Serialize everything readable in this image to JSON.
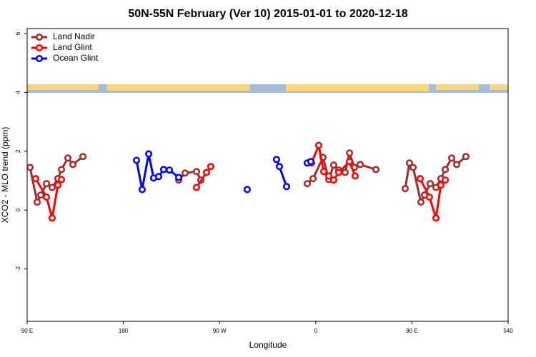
{
  "chart_data": {
    "type": "line",
    "title": "50N-55N February (Ver 10)   2015-01-01 to 2020-12-18",
    "x_label": "Longitude",
    "y_label": "XCO2 - MLO trend (ppm)",
    "xlim": [
      90,
      540
    ],
    "ylim": [
      -3.78,
      6.17
    ],
    "xticks": [
      {
        "value": 90,
        "label": "90 E"
      },
      180,
      {
        "value": 270,
        "label": "90 W"
      },
      {
        "value": 360,
        "label": "0"
      },
      {
        "value": 450,
        "label": "90 E"
      },
      540
    ],
    "yticks": [
      -2,
      0,
      2,
      4,
      6
    ],
    "legend": "top-left",
    "series": [
      {
        "name": "Land Nadir",
        "color": "#a52a2a",
        "x": [
          92.7,
          99.4,
          102.7,
          108.1,
          113.4,
          118.8,
          122.1,
          128.1,
          132.8,
          142.2,
          null,
          231.8,
          237.8,
          248.5,
          252.5,
          null,
          352.1,
          357.5,
          366.8,
          372.2,
          376.8,
          381.5,
          387.5,
          391.6,
          396.2,
          401.6,
          416.3,
          null,
          443.7,
          447.7,
          451.1,
          458.4,
          461.8,
          467.1,
          472.5,
          477.1,
          481.2,
          487.2,
          491.9,
          500.5
        ],
        "values": [
          1.45,
          0.27,
          0.51,
          0.9,
          0.77,
          1.07,
          1.38,
          1.77,
          1.55,
          1.82,
          null,
          1.02,
          1.26,
          1.31,
          1.02,
          null,
          0.9,
          1.07,
          1.79,
          1.04,
          1.53,
          1.36,
          1.28,
          1.94,
          1.45,
          1.55,
          1.38,
          null,
          0.73,
          1.6,
          1.45,
          0.27,
          0.51,
          0.9,
          0.77,
          1.07,
          1.38,
          1.77,
          1.55,
          1.82
        ]
      },
      {
        "name": "Land Glint",
        "color": "#ff0000",
        "x": [
          98.0,
          108.1,
          113.4,
          118.8,
          122.1,
          null,
          248.5,
          257.8,
          261.8,
          null,
          356.1,
          362.8,
          367.5,
          372.2,
          376.8,
          381.5,
          391.6,
          396.9,
          null,
          457.7,
          466.4,
          472.5,
          477.1,
          481.2
        ],
        "values": [
          1.07,
          0.44,
          -0.27,
          0.85,
          1.04,
          null,
          0.77,
          1.28,
          1.48,
          null,
          1.6,
          2.2,
          1.31,
          1.16,
          1.02,
          1.28,
          1.65,
          1.16,
          null,
          1.07,
          0.44,
          -0.27,
          0.85,
          1.02
        ]
      },
      {
        "name": "Ocean Glint",
        "color": "#0000ff",
        "x": [
          192.3,
          197.6,
          203.7,
          208.3,
          213.0,
          217.7,
          223.1,
          231.8,
          null,
          295.9,
          null,
          323.3,
          326.0,
          332.7,
          null,
          352.1,
          355.4
        ],
        "values": [
          1.69,
          0.7,
          1.91,
          1.09,
          1.14,
          1.38,
          1.36,
          1.11,
          null,
          0.7,
          null,
          1.72,
          1.48,
          0.8,
          null,
          1.6,
          1.65
        ]
      }
    ]
  }
}
